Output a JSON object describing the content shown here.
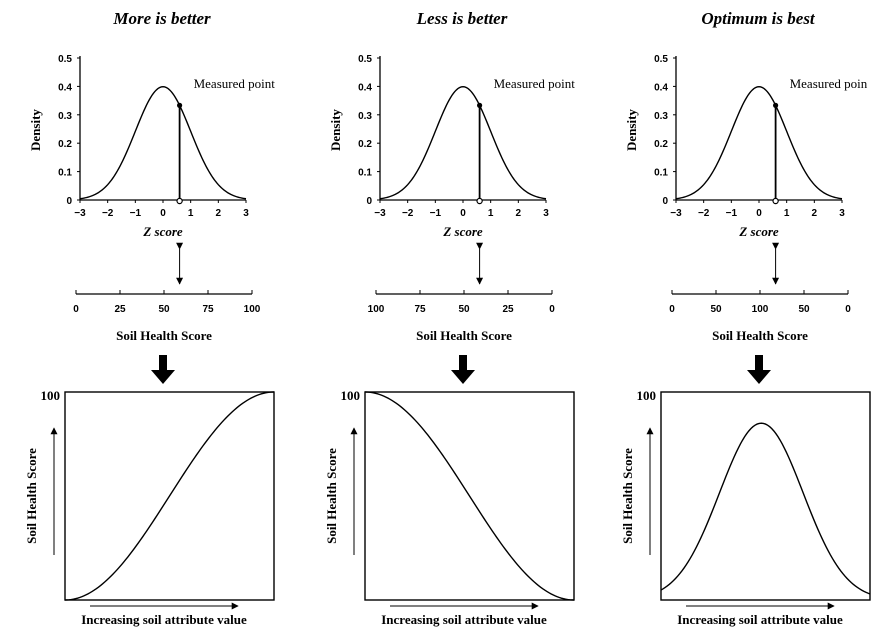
{
  "panels": [
    {
      "title": "More is better",
      "density_axis_label": "Density",
      "density_yticks": [
        "0.5",
        "0.4",
        "0.3",
        "0.2",
        "0.1",
        "0"
      ],
      "z_ticks": [
        "−3",
        "−2",
        "−1",
        "0",
        "1",
        "2",
        "3"
      ],
      "z_axis_label": "Z score",
      "measured_label": "Measured point",
      "measured_z": 0.6,
      "score_ticks": [
        "0",
        "25",
        "50",
        "75",
        "100"
      ],
      "score_label": "Soil Health Score",
      "curve_type": "increasing",
      "y_top_label": "100",
      "y_axis_label": "Soil Health Score",
      "x_axis_label": "Increasing soil attribute value"
    },
    {
      "title": "Less is better",
      "density_axis_label": "Density",
      "density_yticks": [
        "0.5",
        "0.4",
        "0.3",
        "0.2",
        "0.1",
        "0"
      ],
      "z_ticks": [
        "−3",
        "−2",
        "−1",
        "0",
        "1",
        "2",
        "3"
      ],
      "z_axis_label": "Z score",
      "measured_label": "Measured point",
      "measured_z": 0.6,
      "score_ticks": [
        "100",
        "75",
        "50",
        "25",
        "0"
      ],
      "score_label": "Soil Health Score",
      "curve_type": "decreasing",
      "y_top_label": "100",
      "y_axis_label": "Soil Health Score",
      "x_axis_label": "Increasing soil attribute value"
    },
    {
      "title": "Optimum is best",
      "density_axis_label": "Density",
      "density_yticks": [
        "0.5",
        "0.4",
        "0.3",
        "0.2",
        "0.1",
        "0"
      ],
      "z_ticks": [
        "−3",
        "−2",
        "−1",
        "0",
        "1",
        "2",
        "3"
      ],
      "z_axis_label": "Z score",
      "measured_label": "Measured poin",
      "measured_z": 0.6,
      "score_ticks": [
        "0",
        "50",
        "100",
        "50",
        "0"
      ],
      "score_label": "Soil Health Score",
      "curve_type": "optimum",
      "y_top_label": "100",
      "y_axis_label": "Soil Health Score",
      "x_axis_label": "Increasing soil attribute value"
    }
  ]
}
